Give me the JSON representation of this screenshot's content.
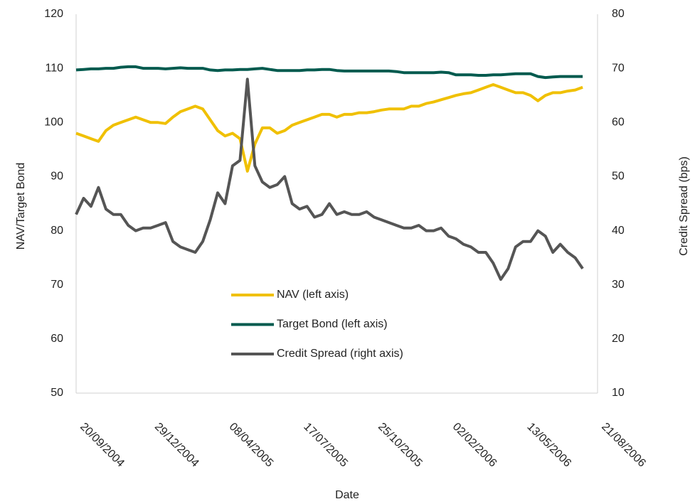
{
  "chart_data": {
    "type": "line",
    "x_label": "Date",
    "y_label": "NAV/Target Bond",
    "y2_label": "Credit Spread (bps)",
    "x": [
      "2004-09-20",
      "2004-09-30",
      "2004-10-10",
      "2004-10-20",
      "2004-10-30",
      "2004-11-09",
      "2004-11-19",
      "2004-11-29",
      "2004-12-09",
      "2004-12-19",
      "2004-12-29",
      "2005-01-08",
      "2005-01-18",
      "2005-01-28",
      "2005-02-07",
      "2005-02-17",
      "2005-02-27",
      "2005-03-09",
      "2005-03-19",
      "2005-03-29",
      "2005-04-08",
      "2005-04-18",
      "2005-04-28",
      "2005-05-08",
      "2005-05-18",
      "2005-05-28",
      "2005-06-07",
      "2005-06-17",
      "2005-06-27",
      "2005-07-07",
      "2005-07-17",
      "2005-07-27",
      "2005-08-06",
      "2005-08-16",
      "2005-08-26",
      "2005-09-05",
      "2005-09-15",
      "2005-09-25",
      "2005-10-05",
      "2005-10-15",
      "2005-10-25",
      "2005-11-04",
      "2005-11-14",
      "2005-11-24",
      "2005-12-04",
      "2005-12-14",
      "2005-12-24",
      "2006-01-03",
      "2006-01-13",
      "2006-01-23",
      "2006-02-02",
      "2006-02-12",
      "2006-02-22",
      "2006-03-04",
      "2006-03-14",
      "2006-03-24",
      "2006-04-03",
      "2006-04-13",
      "2006-04-23",
      "2006-05-03",
      "2006-05-13",
      "2006-05-23",
      "2006-06-02",
      "2006-06-12",
      "2006-06-22",
      "2006-07-02",
      "2006-07-12",
      "2006-07-22",
      "2006-08-01"
    ],
    "series": [
      {
        "name": "NAV (left axis)",
        "color": "#f0c000",
        "axis": "y",
        "values": [
          98,
          97.5,
          97,
          96.5,
          98.5,
          99.5,
          100,
          100.5,
          101,
          100.5,
          100,
          100,
          99.8,
          101,
          102,
          102.5,
          103,
          102.5,
          100.5,
          98.5,
          97.5,
          98,
          97,
          91,
          96,
          99,
          99,
          98,
          98.5,
          99.5,
          100,
          100.5,
          101,
          101.5,
          101.5,
          101,
          101.5,
          101.5,
          101.8,
          101.8,
          102,
          102.3,
          102.5,
          102.5,
          102.5,
          103,
          103,
          103.5,
          103.8,
          104.2,
          104.6,
          105,
          105.3,
          105.5,
          106,
          106.5,
          107,
          106.5,
          106,
          105.5,
          105.5,
          105,
          104,
          105,
          105.5,
          105.5,
          105.8,
          106,
          106.5
        ]
      },
      {
        "name": "Target Bond (left axis)",
        "color": "#005a4e",
        "axis": "y",
        "values": [
          109.7,
          109.8,
          109.9,
          109.9,
          110,
          110,
          110.2,
          110.3,
          110.3,
          110,
          110,
          110,
          109.9,
          110,
          110.1,
          110,
          110,
          110,
          109.7,
          109.6,
          109.7,
          109.7,
          109.8,
          109.8,
          109.9,
          110,
          109.8,
          109.6,
          109.6,
          109.6,
          109.6,
          109.7,
          109.7,
          109.8,
          109.8,
          109.6,
          109.5,
          109.5,
          109.5,
          109.5,
          109.5,
          109.5,
          109.5,
          109.4,
          109.2,
          109.2,
          109.2,
          109.2,
          109.2,
          109.3,
          109.2,
          108.8,
          108.8,
          108.8,
          108.7,
          108.7,
          108.8,
          108.8,
          108.9,
          109,
          109,
          109,
          108.5,
          108.3,
          108.4,
          108.5,
          108.5,
          108.5,
          108.5
        ]
      },
      {
        "name": "Credit Spread (right axis)",
        "color": "#555555",
        "axis": "y2",
        "values": [
          43,
          46,
          44.5,
          48,
          44,
          43,
          43,
          41,
          40,
          40.5,
          40.5,
          41,
          41.5,
          38,
          37,
          36.5,
          36,
          38,
          42,
          47,
          45,
          52,
          53,
          68,
          52,
          49,
          48,
          48.5,
          50,
          45,
          44,
          44.5,
          42.5,
          43,
          45,
          43,
          43.5,
          43,
          43,
          43.5,
          42.5,
          42,
          41.5,
          41,
          40.5,
          40.5,
          41,
          40,
          40,
          40.5,
          39,
          38.5,
          37.5,
          37,
          36,
          36,
          34,
          31,
          33,
          37,
          38,
          38,
          40,
          39,
          36,
          37.5,
          36,
          35,
          33
        ]
      }
    ],
    "xlim": [
      "2004-09-20",
      "2006-08-21"
    ],
    "xticks": [
      {
        "value": "2004-09-20",
        "label": "20/09/2004"
      },
      {
        "value": "2004-12-29",
        "label": "29/12/2004"
      },
      {
        "value": "2005-04-08",
        "label": "08/04/2005"
      },
      {
        "value": "2005-07-17",
        "label": "17/07/2005"
      },
      {
        "value": "2005-10-25",
        "label": "25/10/2005"
      },
      {
        "value": "2006-02-02",
        "label": "02/02/2006"
      },
      {
        "value": "2006-05-13",
        "label": "13/05/2006"
      },
      {
        "value": "2006-08-21",
        "label": "21/08/2006"
      }
    ],
    "ylim": [
      50,
      120
    ],
    "yticks": [
      50,
      60,
      70,
      80,
      90,
      100,
      110,
      120
    ],
    "y2lim": [
      10,
      80
    ],
    "y2ticks": [
      10,
      20,
      30,
      40,
      50,
      60,
      70,
      80
    ]
  }
}
